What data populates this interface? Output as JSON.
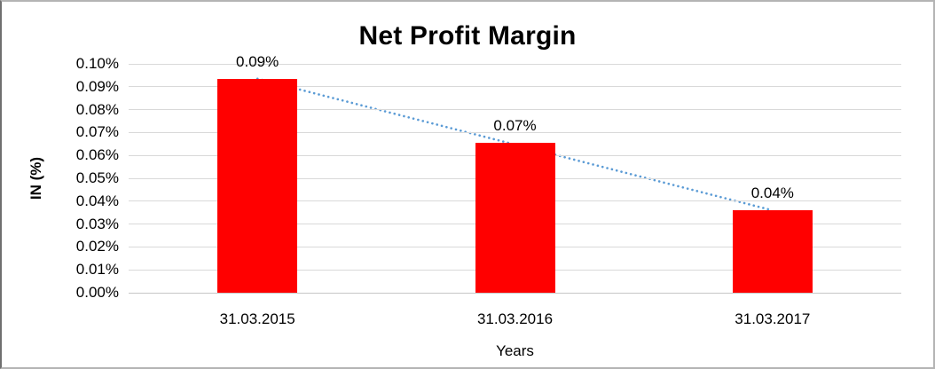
{
  "chart_data": {
    "type": "bar",
    "title": "Net Profit Margin",
    "xlabel": "Years",
    "ylabel": "IN (%)",
    "categories": [
      "31.03.2015",
      "31.03.2016",
      "31.03.2017"
    ],
    "values": [
      0.0935,
      0.0654,
      0.0361
    ],
    "data_labels": [
      "0.09%",
      "0.07%",
      "0.04%"
    ],
    "ylim": [
      0,
      0.1
    ],
    "y_tick_step": 0.01,
    "y_tick_labels": [
      "0.00%",
      "0.01%",
      "0.02%",
      "0.03%",
      "0.04%",
      "0.05%",
      "0.06%",
      "0.07%",
      "0.08%",
      "0.09%",
      "0.10%"
    ],
    "grid": true,
    "legend": false,
    "colors": {
      "bar": "#ff0000",
      "gridline": "#d9d9d9",
      "baseline": "#c6c6c6",
      "text": "#000000",
      "trendline": "#5b9bd5"
    },
    "trendline": {
      "type": "linear",
      "style": "dotted",
      "start_value": 0.0935,
      "end_value": 0.036
    }
  }
}
